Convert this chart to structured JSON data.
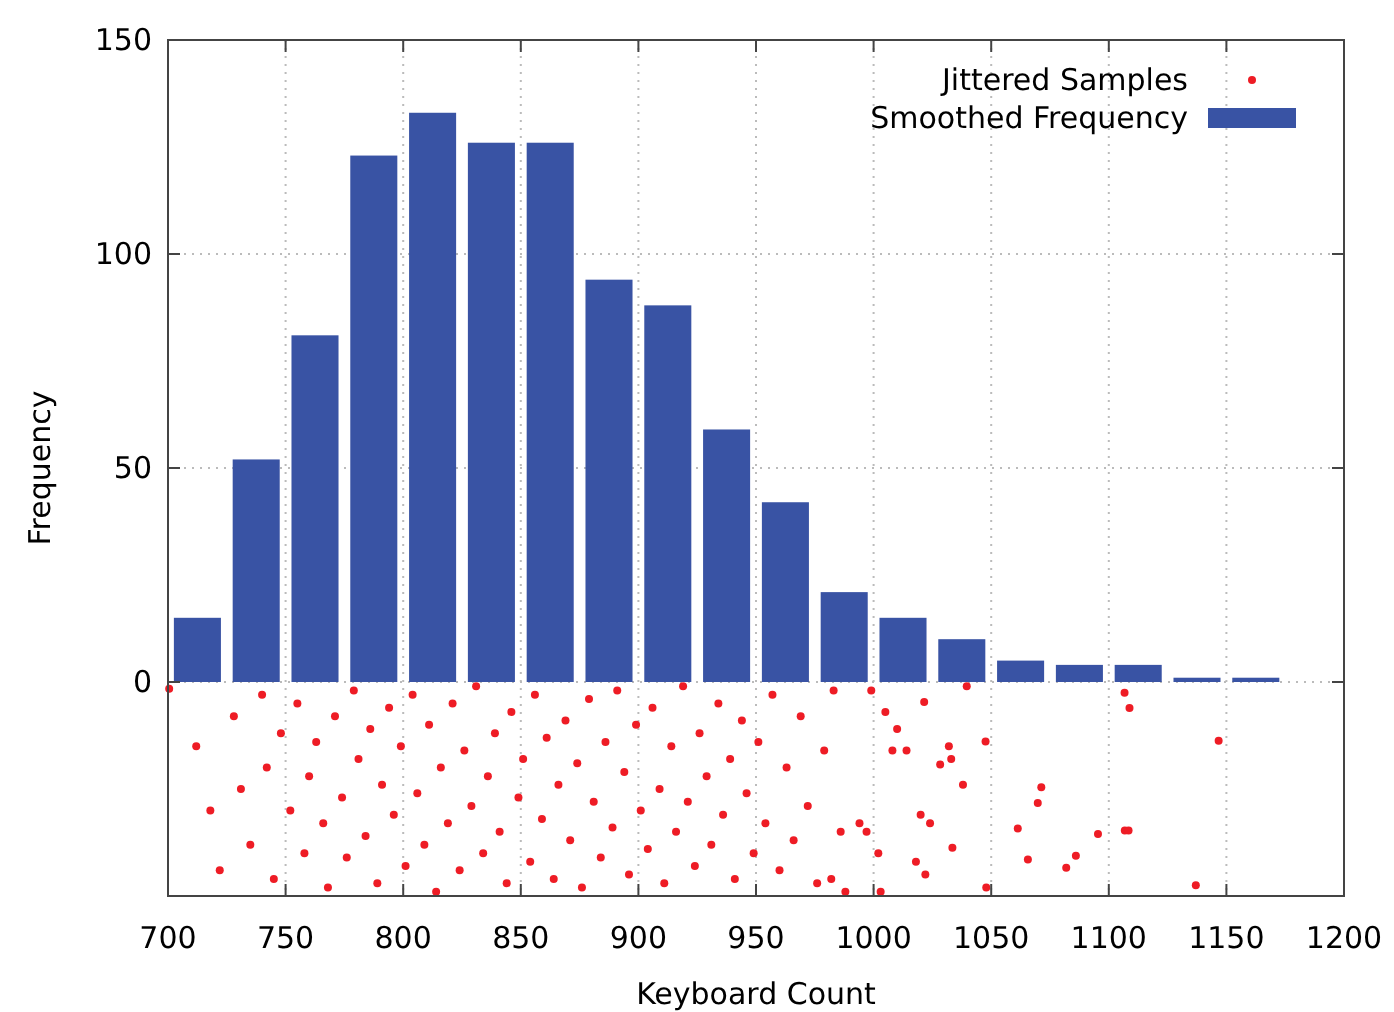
{
  "chart_data": {
    "type": "histogram",
    "xlabel": "Keyboard Count",
    "ylabel": "Frequency",
    "xlim": [
      700,
      1200
    ],
    "xticks": [
      700,
      750,
      800,
      850,
      900,
      950,
      1000,
      1050,
      1100,
      1150,
      1200
    ],
    "ylim": [
      -50,
      150
    ],
    "yticks": [
      0,
      50,
      100,
      150
    ],
    "grid": true,
    "legend": "top right",
    "bins": [
      700,
      725,
      750,
      775,
      800,
      825,
      850,
      875,
      900,
      925,
      950,
      975,
      1000,
      1025,
      1050,
      1075,
      1100,
      1125,
      1150,
      1175
    ],
    "series": [
      {
        "name": "Jittered Samples",
        "type": "scatter",
        "color": "#ee1c25",
        "marker": "circle",
        "x": [
          700.5,
          1039.6,
          1106.7,
          1108.8,
          1047.6,
          1146.7,
          1071.3,
          1069.8,
          1061.3,
          1106.8,
          1108.4,
          1095.4,
          1086,
          1081.9,
          1065.6,
          1047.9,
          1137,
          1033.5,
          1028.3,
          1032,
          1033,
          1038,
          1021.5,
          1020,
          1024,
          1018,
          1022,
          1014,
          1010,
          1008,
          999,
          1005,
          994,
          997,
          1002,
          988,
          1003,
          982,
          712,
          718,
          722,
          728,
          731,
          735,
          740,
          742,
          745,
          748,
          752,
          755,
          758,
          760,
          763,
          766,
          768,
          771,
          774,
          776,
          779,
          781,
          784,
          786,
          789,
          791,
          794,
          796,
          799,
          801,
          804,
          806,
          809,
          811,
          814,
          816,
          819,
          821,
          824,
          826,
          829,
          831,
          834,
          836,
          839,
          841,
          844,
          846,
          849,
          851,
          854,
          856,
          859,
          861,
          864,
          866,
          869,
          871,
          874,
          876,
          879,
          881,
          884,
          886,
          889,
          891,
          894,
          896,
          899,
          901,
          904,
          906,
          909,
          911,
          914,
          916,
          919,
          921,
          924,
          926,
          929,
          931,
          934,
          936,
          939,
          941,
          944,
          946,
          949,
          951,
          954,
          957,
          960,
          963,
          966,
          969,
          972,
          976,
          979,
          983,
          986
        ],
        "values": [
          -1.6,
          -1,
          -2.5,
          -6.1,
          -13.9,
          -13.7,
          -24.6,
          -28.3,
          -34.2,
          -34.7,
          -34.7,
          -35.5,
          -40.6,
          -43.4,
          -41.5,
          -48,
          -47.5,
          -38.7,
          -19.3,
          -15,
          -18,
          -24,
          -4.7,
          -31,
          -33,
          -42,
          -45,
          -16,
          -11,
          -16,
          -2,
          -7,
          -33,
          -35,
          -40,
          -49,
          -49,
          -46,
          -15,
          -30,
          -44,
          -8,
          -25,
          -38,
          -3,
          -20,
          -46,
          -12,
          -30,
          -5,
          -40,
          -22,
          -14,
          -33,
          -48,
          -8,
          -27,
          -41,
          -2,
          -18,
          -36,
          -11,
          -47,
          -24,
          -6,
          -31,
          -15,
          -43,
          -3,
          -26,
          -38,
          -10,
          -49,
          -20,
          -33,
          -5,
          -44,
          -16,
          -29,
          -1,
          -40,
          -22,
          -12,
          -35,
          -47,
          -7,
          -27,
          -18,
          -42,
          -3,
          -32,
          -13,
          -46,
          -24,
          -9,
          -37,
          -19,
          -48,
          -4,
          -28,
          -41,
          -14,
          -34,
          -2,
          -21,
          -45,
          -10,
          -30,
          -39,
          -6,
          -25,
          -47,
          -15,
          -35,
          -1,
          -28,
          -43,
          -12,
          -22,
          -38,
          -5,
          -31,
          -18,
          -46,
          -9,
          -26,
          -40,
          -14,
          -33,
          -3,
          -44,
          -20,
          -37,
          -8,
          -29,
          -47,
          -16,
          -2,
          -35
        ]
      },
      {
        "name": "Smoothed Frequency",
        "color": "#3953a4",
        "values": [
          15,
          52,
          81,
          123,
          133,
          126,
          126,
          94,
          88,
          59,
          42,
          21,
          15,
          10,
          5,
          4,
          4,
          1,
          1
        ]
      }
    ]
  }
}
